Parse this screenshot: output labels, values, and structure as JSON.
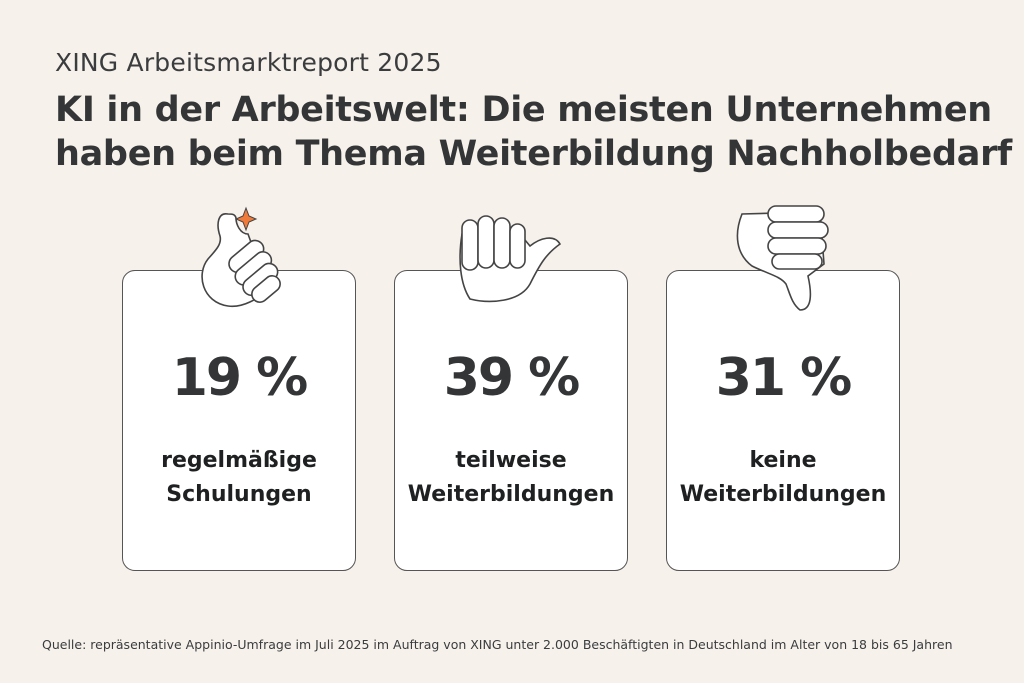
{
  "header": {
    "subtitle": "XING Arbeitsmarktreport 2025",
    "title_line1": "KI in der Arbeitswelt: Die meisten Unternehmen",
    "title_line2": "haben beim Thema Weiterbildung Nachholbedarf"
  },
  "cards": [
    {
      "icon": "thumbs-up-icon",
      "value": "19 %",
      "label_line1": "regelmäßige",
      "label_line2": "Schulungen"
    },
    {
      "icon": "thumbs-sideways-icon",
      "value": "39 %",
      "label_line1": "teilweise",
      "label_line2": "Weiterbildungen"
    },
    {
      "icon": "thumbs-down-icon",
      "value": "31 %",
      "label_line1": "keine",
      "label_line2": "Weiterbildungen"
    }
  ],
  "source": "Quelle: repräsentative Appinio-Umfrage im Juli 2025 im Auftrag von XING unter 2.000 Beschäftigten in Deutschland im Alter von 18 bis 65 Jahren",
  "colors": {
    "background": "#f6f1eb",
    "accent": "#f07a3a",
    "text": "#333536"
  }
}
